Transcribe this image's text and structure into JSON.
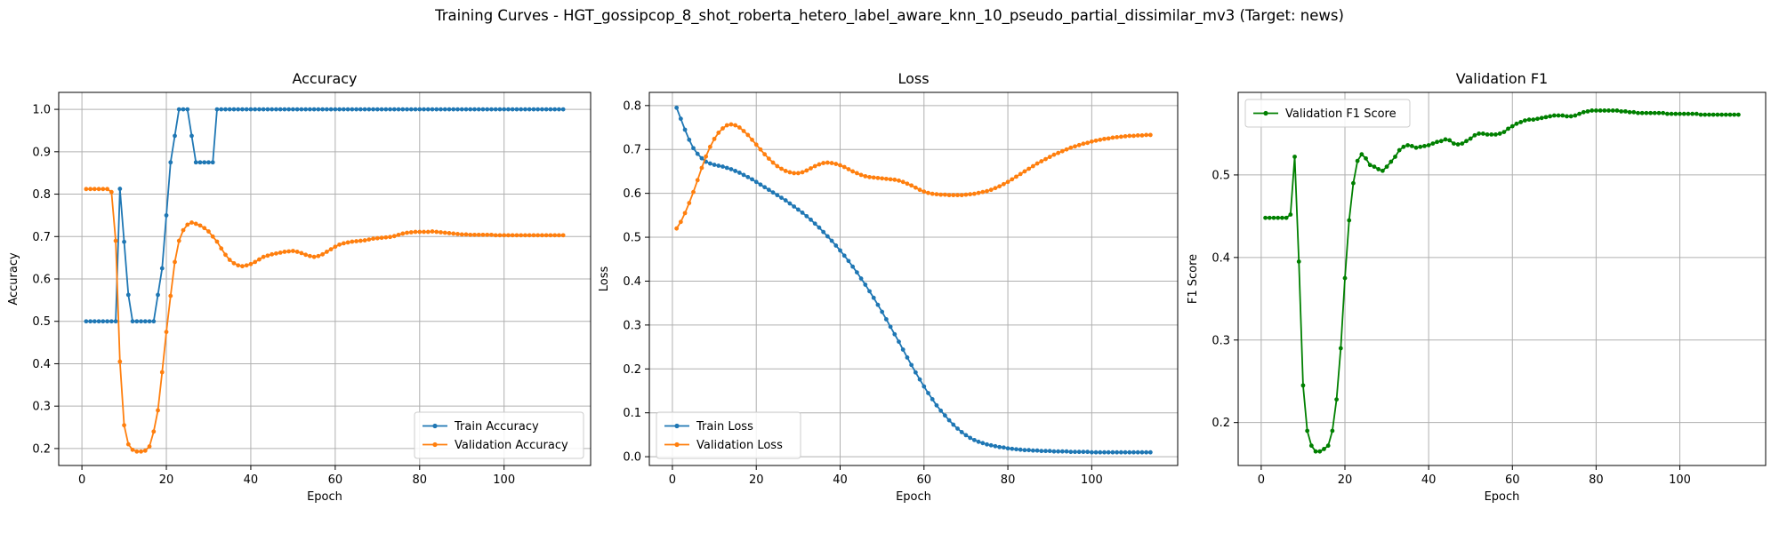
{
  "suptitle": "Training Curves - HGT_gossipcop_8_shot_roberta_hetero_label_aware_knn_10_pseudo_partial_dissimilar_mv3 (Target: news)",
  "colors": {
    "train": "#1f77b4",
    "validation": "#ff7f0e",
    "f1": "#008000",
    "grid": "#b0b0b0"
  },
  "chart_data": [
    {
      "type": "line",
      "title": "Accuracy",
      "xlabel": "Epoch",
      "ylabel": "Accuracy",
      "xlim": [
        -5.5,
        120.5
      ],
      "ylim": [
        0.16,
        1.04
      ],
      "xticks": [
        0,
        20,
        40,
        60,
        80,
        100
      ],
      "yticks": [
        0.2,
        0.3,
        0.4,
        0.5,
        0.6,
        0.7,
        0.8,
        0.9,
        1.0
      ],
      "ytick_labels": [
        "0.2",
        "0.3",
        "0.4",
        "0.5",
        "0.6",
        "0.7",
        "0.8",
        "0.9",
        "1.0"
      ],
      "grid": true,
      "legend": "lower-right",
      "series": [
        {
          "name": "Train Accuracy",
          "color": "#1f77b4",
          "x_start": 1,
          "values": [
            0.5,
            0.5,
            0.5,
            0.5,
            0.5,
            0.5,
            0.5,
            0.5,
            0.8125,
            0.6875,
            0.5625,
            0.5,
            0.5,
            0.5,
            0.5,
            0.5,
            0.5,
            0.5625,
            0.625,
            0.75,
            0.875,
            0.9375,
            1.0,
            1.0,
            1.0,
            0.9375,
            0.875,
            0.875,
            0.875,
            0.875,
            0.875,
            1.0,
            1.0,
            1.0,
            1.0,
            1.0,
            1.0,
            1.0,
            1.0,
            1.0,
            1.0,
            1.0,
            1.0,
            1.0,
            1.0,
            1.0,
            1.0,
            1.0,
            1.0,
            1.0,
            1.0,
            1.0,
            1.0,
            1.0,
            1.0,
            1.0,
            1.0,
            1.0,
            1.0,
            1.0,
            1.0,
            1.0,
            1.0,
            1.0,
            1.0,
            1.0,
            1.0,
            1.0,
            1.0,
            1.0,
            1.0,
            1.0,
            1.0,
            1.0,
            1.0,
            1.0,
            1.0,
            1.0,
            1.0,
            1.0,
            1.0,
            1.0,
            1.0,
            1.0,
            1.0,
            1.0,
            1.0,
            1.0,
            1.0,
            1.0,
            1.0,
            1.0,
            1.0,
            1.0,
            1.0,
            1.0,
            1.0,
            1.0,
            1.0,
            1.0,
            1.0,
            1.0,
            1.0,
            1.0,
            1.0,
            1.0,
            1.0,
            1.0,
            1.0,
            1.0,
            1.0,
            1.0,
            1.0,
            1.0
          ]
        },
        {
          "name": "Validation Accuracy",
          "color": "#ff7f0e",
          "x_start": 1,
          "values": [
            0.812,
            0.812,
            0.812,
            0.812,
            0.812,
            0.812,
            0.805,
            0.69,
            0.405,
            0.255,
            0.21,
            0.197,
            0.193,
            0.193,
            0.195,
            0.205,
            0.24,
            0.29,
            0.38,
            0.475,
            0.56,
            0.64,
            0.69,
            0.715,
            0.728,
            0.733,
            0.73,
            0.726,
            0.72,
            0.712,
            0.7,
            0.688,
            0.672,
            0.657,
            0.645,
            0.637,
            0.632,
            0.63,
            0.632,
            0.635,
            0.64,
            0.646,
            0.652,
            0.655,
            0.658,
            0.66,
            0.662,
            0.664,
            0.665,
            0.666,
            0.664,
            0.661,
            0.657,
            0.654,
            0.652,
            0.654,
            0.658,
            0.664,
            0.67,
            0.676,
            0.681,
            0.684,
            0.686,
            0.688,
            0.689,
            0.69,
            0.691,
            0.693,
            0.695,
            0.696,
            0.697,
            0.698,
            0.699,
            0.701,
            0.704,
            0.707,
            0.709,
            0.71,
            0.711,
            0.711,
            0.711,
            0.711,
            0.712,
            0.711,
            0.71,
            0.709,
            0.708,
            0.707,
            0.706,
            0.705,
            0.705,
            0.704,
            0.704,
            0.704,
            0.704,
            0.704,
            0.704,
            0.703,
            0.703,
            0.703,
            0.703,
            0.703,
            0.703,
            0.703,
            0.703,
            0.703,
            0.703,
            0.703,
            0.703,
            0.703,
            0.703,
            0.703,
            0.703,
            0.703
          ]
        }
      ]
    },
    {
      "type": "line",
      "title": "Loss",
      "xlabel": "Epoch",
      "ylabel": "Loss",
      "xlim": [
        -5.5,
        120.5
      ],
      "ylim": [
        -0.02,
        0.83
      ],
      "xticks": [
        0,
        20,
        40,
        60,
        80,
        100
      ],
      "yticks": [
        0.0,
        0.1,
        0.2,
        0.3,
        0.4,
        0.5,
        0.6,
        0.7,
        0.8
      ],
      "ytick_labels": [
        "0.0",
        "0.1",
        "0.2",
        "0.3",
        "0.4",
        "0.5",
        "0.6",
        "0.7",
        "0.8"
      ],
      "grid": true,
      "legend": "lower-left",
      "series": [
        {
          "name": "Train Loss",
          "color": "#1f77b4",
          "x_start": 1,
          "values": [
            0.795,
            0.77,
            0.745,
            0.722,
            0.703,
            0.69,
            0.68,
            0.672,
            0.668,
            0.665,
            0.663,
            0.661,
            0.658,
            0.655,
            0.651,
            0.647,
            0.642,
            0.637,
            0.632,
            0.626,
            0.62,
            0.614,
            0.608,
            0.602,
            0.596,
            0.59,
            0.584,
            0.577,
            0.57,
            0.563,
            0.556,
            0.548,
            0.54,
            0.531,
            0.522,
            0.512,
            0.502,
            0.492,
            0.481,
            0.47,
            0.458,
            0.446,
            0.433,
            0.42,
            0.406,
            0.392,
            0.377,
            0.362,
            0.346,
            0.33,
            0.313,
            0.296,
            0.279,
            0.262,
            0.244,
            0.226,
            0.209,
            0.192,
            0.176,
            0.16,
            0.145,
            0.131,
            0.117,
            0.105,
            0.094,
            0.083,
            0.073,
            0.064,
            0.056,
            0.049,
            0.043,
            0.038,
            0.034,
            0.031,
            0.028,
            0.026,
            0.024,
            0.022,
            0.021,
            0.019,
            0.018,
            0.017,
            0.016,
            0.015,
            0.015,
            0.014,
            0.014,
            0.013,
            0.013,
            0.013,
            0.012,
            0.012,
            0.012,
            0.012,
            0.011,
            0.011,
            0.011,
            0.011,
            0.011,
            0.01,
            0.01,
            0.01,
            0.01,
            0.01,
            0.01,
            0.01,
            0.01,
            0.01,
            0.01,
            0.01,
            0.01,
            0.01,
            0.01,
            0.01
          ]
        },
        {
          "name": "Validation Loss",
          "color": "#ff7f0e",
          "x_start": 1,
          "values": [
            0.52,
            0.535,
            0.555,
            0.578,
            0.603,
            0.63,
            0.658,
            0.684,
            0.706,
            0.724,
            0.738,
            0.748,
            0.755,
            0.757,
            0.755,
            0.75,
            0.742,
            0.733,
            0.722,
            0.711,
            0.7,
            0.689,
            0.679,
            0.67,
            0.662,
            0.656,
            0.651,
            0.648,
            0.646,
            0.646,
            0.648,
            0.652,
            0.657,
            0.662,
            0.666,
            0.669,
            0.67,
            0.669,
            0.667,
            0.664,
            0.66,
            0.655,
            0.65,
            0.646,
            0.642,
            0.639,
            0.637,
            0.636,
            0.635,
            0.634,
            0.633,
            0.632,
            0.631,
            0.629,
            0.626,
            0.622,
            0.618,
            0.613,
            0.608,
            0.604,
            0.601,
            0.599,
            0.598,
            0.597,
            0.597,
            0.596,
            0.596,
            0.596,
            0.596,
            0.597,
            0.598,
            0.599,
            0.601,
            0.603,
            0.605,
            0.608,
            0.612,
            0.616,
            0.621,
            0.626,
            0.632,
            0.638,
            0.644,
            0.65,
            0.656,
            0.662,
            0.668,
            0.673,
            0.678,
            0.683,
            0.688,
            0.692,
            0.696,
            0.7,
            0.704,
            0.707,
            0.71,
            0.713,
            0.715,
            0.718,
            0.72,
            0.722,
            0.724,
            0.725,
            0.727,
            0.728,
            0.729,
            0.73,
            0.731,
            0.731,
            0.732,
            0.732,
            0.733,
            0.733
          ]
        }
      ]
    },
    {
      "type": "line",
      "title": "Validation F1",
      "xlabel": "Epoch",
      "ylabel": "F1 Score",
      "xlim": [
        -5.5,
        120.5
      ],
      "ylim": [
        0.148,
        0.6
      ],
      "xticks": [
        0,
        20,
        40,
        60,
        80,
        100
      ],
      "yticks": [
        0.2,
        0.3,
        0.4,
        0.5
      ],
      "ytick_labels": [
        "0.2",
        "0.3",
        "0.4",
        "0.5"
      ],
      "grid": true,
      "legend": "upper-left",
      "series": [
        {
          "name": "Validation F1 Score",
          "color": "#008000",
          "x_start": 1,
          "values": [
            0.448,
            0.448,
            0.448,
            0.448,
            0.448,
            0.448,
            0.452,
            0.522,
            0.395,
            0.245,
            0.19,
            0.172,
            0.165,
            0.165,
            0.168,
            0.172,
            0.19,
            0.228,
            0.29,
            0.375,
            0.445,
            0.49,
            0.517,
            0.525,
            0.52,
            0.512,
            0.51,
            0.507,
            0.505,
            0.51,
            0.516,
            0.522,
            0.53,
            0.534,
            0.536,
            0.535,
            0.533,
            0.534,
            0.535,
            0.536,
            0.538,
            0.54,
            0.541,
            0.543,
            0.542,
            0.538,
            0.537,
            0.538,
            0.541,
            0.544,
            0.548,
            0.55,
            0.55,
            0.549,
            0.549,
            0.549,
            0.55,
            0.552,
            0.556,
            0.559,
            0.562,
            0.564,
            0.566,
            0.567,
            0.567,
            0.568,
            0.569,
            0.57,
            0.571,
            0.572,
            0.572,
            0.572,
            0.571,
            0.571,
            0.572,
            0.574,
            0.576,
            0.577,
            0.578,
            0.578,
            0.578,
            0.578,
            0.578,
            0.578,
            0.578,
            0.577,
            0.577,
            0.576,
            0.576,
            0.575,
            0.575,
            0.575,
            0.575,
            0.575,
            0.575,
            0.575,
            0.574,
            0.574,
            0.574,
            0.574,
            0.574,
            0.574,
            0.574,
            0.574,
            0.573,
            0.573,
            0.573,
            0.573,
            0.573,
            0.573,
            0.573,
            0.573,
            0.573,
            0.573
          ]
        }
      ]
    }
  ]
}
